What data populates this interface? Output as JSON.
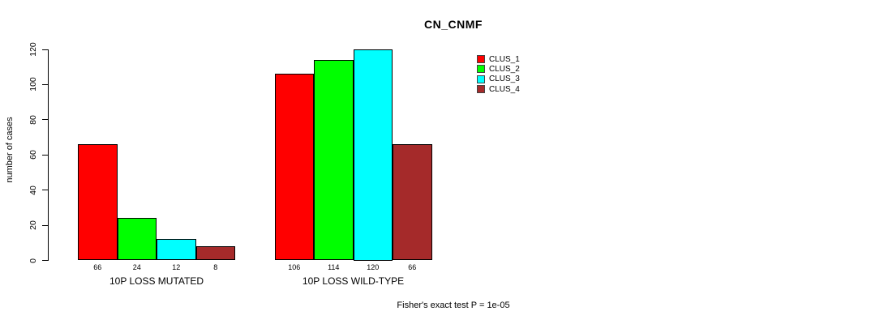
{
  "title": "CN_CNMF",
  "footer": "Fisher's exact test P = 1e-05",
  "chart_data": {
    "type": "bar",
    "title": "CN_CNMF",
    "xlabel": "",
    "ylabel": "number of cases",
    "ylim": [
      0,
      120
    ],
    "yticks": [
      0,
      20,
      40,
      60,
      80,
      100,
      120
    ],
    "grid": false,
    "legend_position": "top-right",
    "bar_value_labels": true,
    "categories": [
      "10P LOSS MUTATED",
      "10P LOSS WILD-TYPE"
    ],
    "series": [
      {
        "name": "CLUS_1",
        "color": "#ff0000",
        "values": [
          66,
          106
        ]
      },
      {
        "name": "CLUS_2",
        "color": "#00ff00",
        "values": [
          24,
          114
        ]
      },
      {
        "name": "CLUS_3",
        "color": "#00ffff",
        "values": [
          12,
          120
        ]
      },
      {
        "name": "CLUS_4",
        "color": "#a52a2a",
        "values": [
          8,
          66
        ]
      }
    ],
    "annotation": "Fisher's exact test P = 1e-05",
    "colors": {
      "background": "#ffffff",
      "axis": "#000000",
      "text": "#000000",
      "bar_border": "#000000"
    }
  }
}
